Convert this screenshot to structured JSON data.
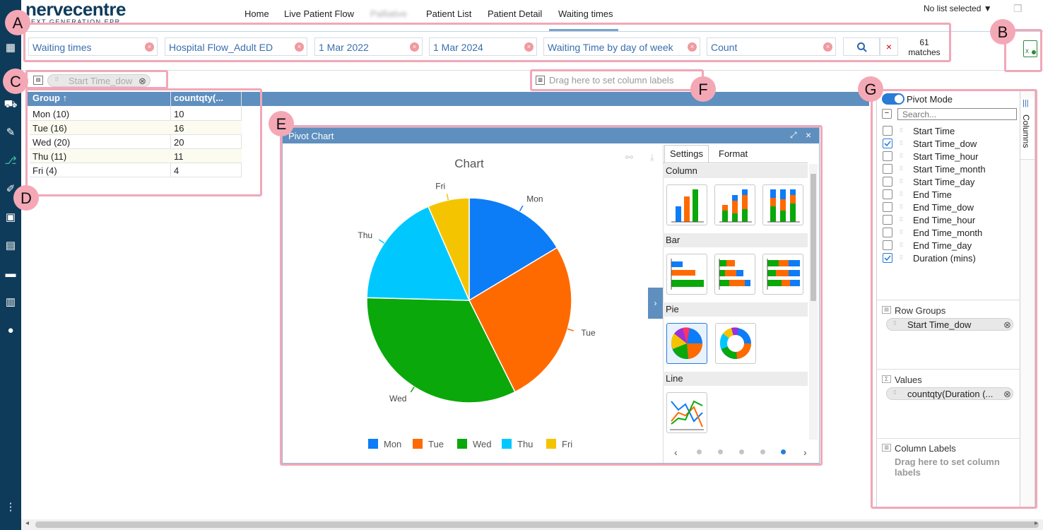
{
  "app": {
    "logo": "nervecentre",
    "logo_sub": "NEXT GENERATION EPR"
  },
  "nav": {
    "items": [
      "Home",
      "Live Patient Flow",
      "Palliative",
      "Patient List",
      "Patient Detail",
      "Waiting times"
    ],
    "active": "Waiting times"
  },
  "list_selector": {
    "label": "No list selected ▼"
  },
  "filters": [
    {
      "value": "Waiting times"
    },
    {
      "value": "Hospital Flow_Adult ED"
    },
    {
      "value": "1 Mar 2022"
    },
    {
      "value": "1 Mar 2024"
    },
    {
      "value": "Waiting Time by day of week"
    },
    {
      "value": "Count"
    }
  ],
  "matches": {
    "count": "61",
    "label": "matches"
  },
  "annotations": [
    "A",
    "B",
    "C",
    "D",
    "E",
    "F",
    "G"
  ],
  "pivot_bar": {
    "row_group_chip": "Start Time_dow",
    "column_drop_hint": "Drag here to set column labels"
  },
  "table": {
    "headers": [
      "Group ↑",
      "countqty(..."
    ],
    "rows": [
      {
        "group": "Mon (10)",
        "value": "10"
      },
      {
        "group": "Tue (16)",
        "value": "16"
      },
      {
        "group": "Wed (20)",
        "value": "20"
      },
      {
        "group": "Thu (11)",
        "value": "11"
      },
      {
        "group": "Fri (4)",
        "value": "4"
      }
    ]
  },
  "pivot_chart": {
    "window_title": "Pivot Chart",
    "tabs": [
      "Settings",
      "Format"
    ],
    "sections": [
      "Column",
      "Bar",
      "Pie",
      "Line"
    ]
  },
  "chart_data": {
    "type": "pie",
    "title": "Chart",
    "categories": [
      "Mon",
      "Tue",
      "Wed",
      "Thu",
      "Fri"
    ],
    "values": [
      10,
      16,
      20,
      11,
      4
    ],
    "colors": [
      "#0d7cf7",
      "#ff6a00",
      "#0aa80a",
      "#00c8ff",
      "#f5c400"
    ],
    "legend": "bottom"
  },
  "columns_panel": {
    "pivot_mode": "Pivot Mode",
    "search_placeholder": "Search...",
    "tab": "Columns",
    "columns": [
      {
        "name": "Start Time",
        "checked": false
      },
      {
        "name": "Start Time_dow",
        "checked": true
      },
      {
        "name": "Start Time_hour",
        "checked": false
      },
      {
        "name": "Start Time_month",
        "checked": false
      },
      {
        "name": "Start Time_day",
        "checked": false
      },
      {
        "name": "End Time",
        "checked": false
      },
      {
        "name": "End Time_dow",
        "checked": false
      },
      {
        "name": "End Time_hour",
        "checked": false
      },
      {
        "name": "End Time_month",
        "checked": false
      },
      {
        "name": "End Time_day",
        "checked": false
      },
      {
        "name": "Duration (mins)",
        "checked": true
      }
    ],
    "row_groups": {
      "title": "Row Groups",
      "chip": "Start Time_dow"
    },
    "values": {
      "title": "Values",
      "chip": "countqty(Duration (..."
    },
    "column_labels": {
      "title": "Column Labels",
      "hint": "Drag here to set column labels"
    }
  }
}
